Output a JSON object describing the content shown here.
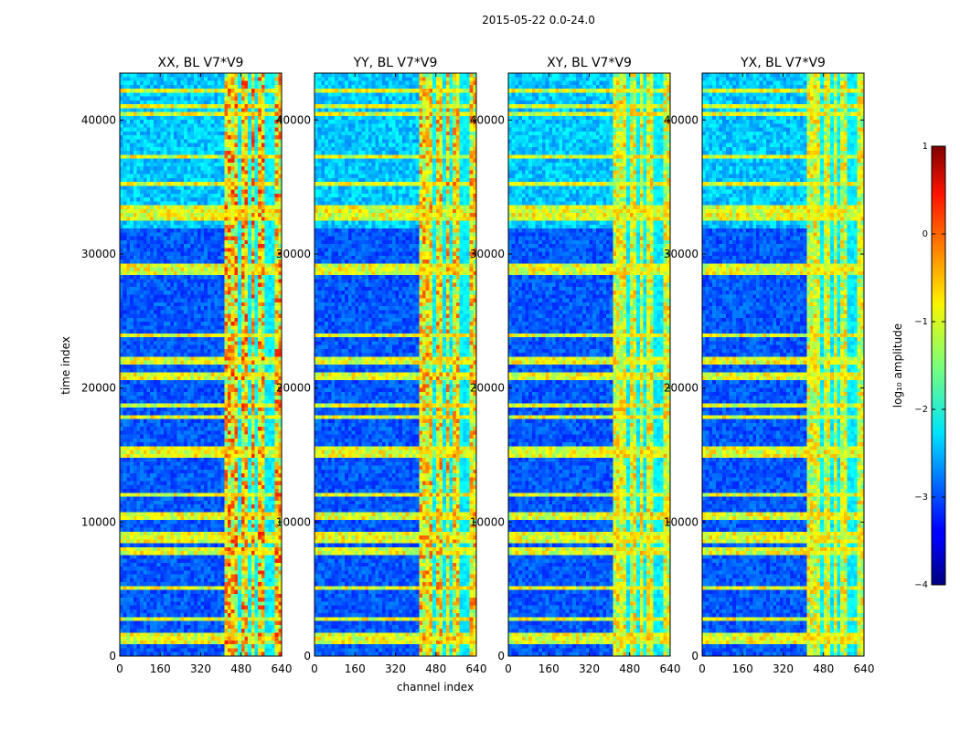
{
  "suptitle": "2015-05-22 0.0-24.0",
  "chart_data": {
    "type": "heatmap",
    "xlabel": "channel index",
    "ylabel": "time index",
    "xlim": [
      0,
      640
    ],
    "ylim": [
      0,
      43500
    ],
    "xticks": [
      0,
      160,
      320,
      480,
      640
    ],
    "yticks": [
      0,
      10000,
      20000,
      30000,
      40000
    ],
    "panels": [
      {
        "title": "XX, BL V7*V9",
        "rfi_strength": 1.15
      },
      {
        "title": "YY, BL V7*V9",
        "rfi_strength": 1.0
      },
      {
        "title": "XY, BL V7*V9",
        "rfi_strength": 0.8
      },
      {
        "title": "YX, BL V7*V9",
        "rfi_strength": 0.75
      }
    ],
    "bright_channel_band": [
      410,
      640
    ],
    "bright_channel_columns": [
      400,
      470,
      510,
      540,
      575,
      600
    ],
    "bright_time_bands": [
      [
        800,
        1800
      ],
      [
        2700,
        3000
      ],
      [
        5000,
        5300
      ],
      [
        7600,
        8000
      ],
      [
        8500,
        9200
      ],
      [
        10200,
        10800
      ],
      [
        11800,
        12300
      ],
      [
        14800,
        15800
      ],
      [
        17600,
        18000
      ],
      [
        18600,
        18900
      ],
      [
        20600,
        21200
      ],
      [
        21800,
        22200
      ],
      [
        23700,
        24000
      ],
      [
        28500,
        29200
      ],
      [
        32400,
        33000
      ],
      [
        33200,
        33600
      ],
      [
        35000,
        35500
      ],
      [
        37000,
        37500
      ],
      [
        40200,
        40500
      ],
      [
        40800,
        41200
      ],
      [
        42000,
        42400
      ]
    ],
    "colorbar": {
      "label": "log₁₀ amplitude",
      "range": [
        -4,
        1
      ],
      "ticks": [
        1,
        0,
        -1,
        -2,
        -3,
        -4
      ],
      "tick_labels": [
        "1",
        "0",
        "−1",
        "−2",
        "−3",
        "−4"
      ],
      "colormap": "jet"
    }
  }
}
